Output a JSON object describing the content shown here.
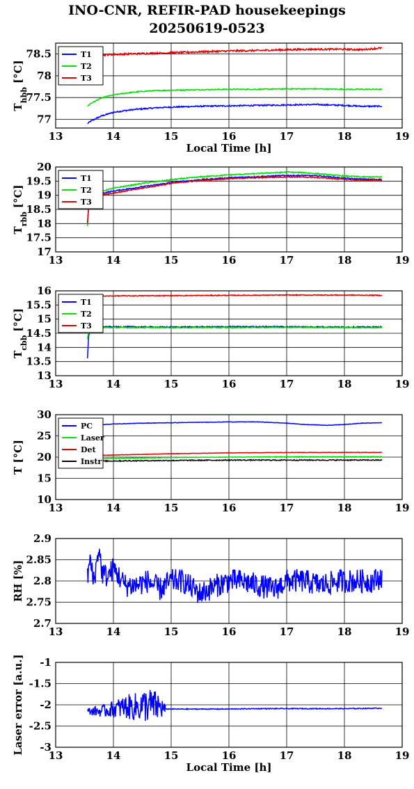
{
  "title_line1": "INO-CNR, REFIR-PAD housekeepings",
  "title_line2": "20250619-0523",
  "colors": {
    "blue": "#0000ff",
    "green": "#00e000",
    "red": "#e00000",
    "black": "#000000"
  },
  "chart_data": [
    {
      "type": "line",
      "id": "hbb",
      "ylabel_main": "T",
      "ylabel_sub": "hbb",
      "ylabel_unit": "[°C]",
      "xlabel": "Local Time [h]",
      "xlim": [
        13,
        19
      ],
      "ylim": [
        76.8,
        78.75
      ],
      "xticks": [
        13,
        14,
        15,
        16,
        17,
        18,
        19
      ],
      "yticks": [
        77,
        77.5,
        78,
        78.5
      ],
      "grid": "y",
      "legend_position": "top-left",
      "series": [
        {
          "name": "T1",
          "color": "blue",
          "x": [
            13.55,
            13.6,
            13.7,
            13.8,
            13.9,
            14.0,
            14.2,
            14.4,
            14.6,
            14.8,
            15.0,
            15.5,
            16.0,
            16.5,
            17.0,
            17.5,
            18.0,
            18.3,
            18.65
          ],
          "y": [
            76.9,
            76.95,
            77.02,
            77.08,
            77.12,
            77.16,
            77.2,
            77.23,
            77.25,
            77.27,
            77.28,
            77.3,
            77.31,
            77.32,
            77.33,
            77.34,
            77.32,
            77.3,
            77.3
          ],
          "noise": 0.015
        },
        {
          "name": "T2",
          "color": "green",
          "x": [
            13.55,
            13.6,
            13.7,
            13.8,
            13.9,
            14.0,
            14.2,
            14.4,
            14.6,
            14.8,
            15.0,
            15.5,
            16.0,
            16.5,
            17.0,
            17.5,
            18.0,
            18.3,
            18.65
          ],
          "y": [
            77.3,
            77.36,
            77.43,
            77.49,
            77.53,
            77.56,
            77.6,
            77.63,
            77.65,
            77.66,
            77.67,
            77.68,
            77.69,
            77.69,
            77.7,
            77.7,
            77.69,
            77.69,
            77.69
          ],
          "noise": 0.012
        },
        {
          "name": "T3",
          "color": "red",
          "x": [
            13.55,
            14.0,
            14.5,
            15.0,
            15.5,
            16.0,
            16.5,
            17.0,
            17.5,
            18.0,
            18.3,
            18.65
          ],
          "y": [
            78.46,
            78.49,
            78.51,
            78.53,
            78.55,
            78.57,
            78.58,
            78.6,
            78.61,
            78.61,
            78.6,
            78.64
          ],
          "noise": 0.02
        }
      ]
    },
    {
      "type": "line",
      "id": "rbb",
      "ylabel_main": "T",
      "ylabel_sub": "rbb",
      "ylabel_unit": "[°C]",
      "xlabel": "",
      "xlim": [
        13,
        19
      ],
      "ylim": [
        17,
        20
      ],
      "xticks": [
        13,
        14,
        15,
        16,
        17,
        18,
        19
      ],
      "yticks": [
        17,
        17.5,
        18,
        18.5,
        19,
        19.5,
        20
      ],
      "grid": "y",
      "legend_position": "top-left",
      "series": [
        {
          "name": "T1",
          "color": "blue",
          "x": [
            13.55,
            13.57,
            13.6,
            13.75,
            14.0,
            14.5,
            15.0,
            15.5,
            16.0,
            16.5,
            17.0,
            17.3,
            17.6,
            18.0,
            18.3,
            18.65
          ],
          "y": [
            18.0,
            18.6,
            19.0,
            19.05,
            19.15,
            19.3,
            19.45,
            19.55,
            19.62,
            19.66,
            19.7,
            19.7,
            19.68,
            19.6,
            19.57,
            19.56
          ],
          "noise": 0.02
        },
        {
          "name": "T2",
          "color": "green",
          "x": [
            13.55,
            13.57,
            13.6,
            13.75,
            14.0,
            14.5,
            15.0,
            15.5,
            16.0,
            16.5,
            17.0,
            17.3,
            17.6,
            18.0,
            18.3,
            18.65
          ],
          "y": [
            17.9,
            18.5,
            19.0,
            19.12,
            19.25,
            19.42,
            19.55,
            19.65,
            19.72,
            19.77,
            19.82,
            19.8,
            19.75,
            19.68,
            19.65,
            19.65
          ],
          "noise": 0.02
        },
        {
          "name": "T3",
          "color": "red",
          "x": [
            13.55,
            13.57,
            13.6,
            13.75,
            14.0,
            14.5,
            15.0,
            15.5,
            16.0,
            16.5,
            17.0,
            17.3,
            17.6,
            18.0,
            18.3,
            18.65
          ],
          "y": [
            18.0,
            18.55,
            18.95,
            19.0,
            19.08,
            19.25,
            19.42,
            19.52,
            19.59,
            19.62,
            19.65,
            19.64,
            19.62,
            19.56,
            19.53,
            19.53
          ],
          "noise": 0.02
        }
      ]
    },
    {
      "type": "line",
      "id": "cbb",
      "ylabel_main": "T",
      "ylabel_sub": "cbb",
      "ylabel_unit": "[°C]",
      "xlabel": "",
      "xlim": [
        13,
        19
      ],
      "ylim": [
        13,
        16
      ],
      "xticks": [
        13,
        14,
        15,
        16,
        17,
        18,
        19
      ],
      "yticks": [
        13,
        13.5,
        14,
        14.5,
        15,
        15.5,
        16
      ],
      "grid": "y",
      "legend_position": "top-left",
      "series": [
        {
          "name": "T1",
          "color": "blue",
          "x": [
            13.55,
            13.57,
            13.6,
            13.7,
            14.0,
            15.0,
            16.0,
            17.0,
            18.0,
            18.65
          ],
          "y": [
            13.6,
            14.4,
            14.7,
            14.72,
            14.73,
            14.72,
            14.73,
            14.73,
            14.72,
            14.72
          ],
          "noise": 0.02
        },
        {
          "name": "T2",
          "color": "green",
          "x": [
            13.55,
            13.57,
            13.6,
            13.7,
            14.0,
            15.0,
            16.0,
            17.0,
            18.0,
            18.65
          ],
          "y": [
            14.3,
            14.6,
            14.68,
            14.7,
            14.7,
            14.7,
            14.7,
            14.71,
            14.7,
            14.7
          ],
          "noise": 0.02
        },
        {
          "name": "T3",
          "color": "red",
          "x": [
            13.55,
            14.0,
            15.0,
            16.0,
            17.0,
            18.0,
            18.65
          ],
          "y": [
            15.8,
            15.82,
            15.83,
            15.84,
            15.85,
            15.85,
            15.84
          ],
          "noise": 0.015
        }
      ]
    },
    {
      "type": "line",
      "id": "temps",
      "ylabel_main": "T [°C]",
      "ylabel_sub": "",
      "ylabel_unit": "",
      "xlabel": "",
      "xlim": [
        13,
        19
      ],
      "ylim": [
        10,
        30
      ],
      "xticks": [
        13,
        14,
        15,
        16,
        17,
        18,
        19
      ],
      "yticks": [
        10,
        15,
        20,
        25,
        30
      ],
      "grid": "y",
      "legend_position": "top-left",
      "series": [
        {
          "name": "PC",
          "color": "blue",
          "x": [
            13.55,
            14.0,
            14.5,
            15.0,
            15.5,
            16.0,
            16.5,
            17.0,
            17.3,
            17.7,
            18.0,
            18.3,
            18.65
          ],
          "y": [
            27.5,
            27.8,
            28.0,
            28.1,
            28.2,
            28.3,
            28.3,
            28.0,
            27.7,
            27.5,
            27.7,
            28.0,
            28.1
          ],
          "noise": 0.05
        },
        {
          "name": "Laser",
          "color": "green",
          "x": [
            13.55,
            14.0,
            15.0,
            16.0,
            17.0,
            18.0,
            18.65
          ],
          "y": [
            19.5,
            19.7,
            19.9,
            20.0,
            20.1,
            20.1,
            20.1
          ],
          "noise": 0.05
        },
        {
          "name": "Det",
          "color": "red",
          "x": [
            13.55,
            14.0,
            15.0,
            16.0,
            17.0,
            18.0,
            18.65
          ],
          "y": [
            20.3,
            20.5,
            20.8,
            21.0,
            21.1,
            21.1,
            21.1
          ],
          "noise": 0.05
        },
        {
          "name": "Instr",
          "color": "black",
          "x": [
            13.55,
            14.0,
            15.0,
            16.0,
            17.0,
            18.0,
            18.65
          ],
          "y": [
            19.0,
            19.1,
            19.2,
            19.3,
            19.3,
            19.3,
            19.3
          ],
          "noise": 0.12
        }
      ]
    },
    {
      "type": "line",
      "id": "rh",
      "ylabel_main": "RH [%]",
      "ylabel_sub": "",
      "ylabel_unit": "",
      "xlabel": "",
      "xlim": [
        13,
        19
      ],
      "ylim": [
        2.7,
        2.9
      ],
      "xticks": [
        13,
        14,
        15,
        16,
        17,
        18,
        19
      ],
      "yticks": [
        2.7,
        2.75,
        2.8,
        2.85,
        2.9
      ],
      "grid": "y",
      "legend_position": "none",
      "series": [
        {
          "name": "",
          "color": "blue",
          "x": [
            13.55,
            13.6,
            13.65,
            13.7,
            13.75,
            13.8,
            13.9,
            14.0,
            14.2,
            14.4,
            14.6,
            14.8,
            15.0,
            15.2,
            15.5,
            15.8,
            16.0,
            16.2,
            16.5,
            16.8,
            17.0,
            17.3,
            17.6,
            17.9,
            18.2,
            18.5,
            18.65
          ],
          "y": [
            2.81,
            2.85,
            2.8,
            2.83,
            2.88,
            2.82,
            2.81,
            2.83,
            2.79,
            2.79,
            2.8,
            2.78,
            2.8,
            2.8,
            2.77,
            2.79,
            2.8,
            2.8,
            2.79,
            2.78,
            2.8,
            2.8,
            2.79,
            2.8,
            2.8,
            2.8,
            2.81
          ],
          "noise": 0.028
        }
      ]
    },
    {
      "type": "line",
      "id": "laser",
      "ylabel_main": "Laser error [a.u.]",
      "ylabel_sub": "",
      "ylabel_unit": "",
      "xlabel": "Local Time [h]",
      "xlim": [
        13,
        19
      ],
      "ylim": [
        -3,
        -1
      ],
      "xticks": [
        13,
        14,
        15,
        16,
        17,
        18,
        19
      ],
      "yticks": [
        -3,
        -2.5,
        -2,
        -1.5,
        -1
      ],
      "grid": "y",
      "legend_position": "none",
      "series": [
        {
          "name": "",
          "color": "blue",
          "x": [
            13.55,
            13.8,
            14.0,
            14.2,
            14.4,
            14.6,
            14.8,
            14.9
          ],
          "y": [
            -2.15,
            -2.15,
            -2.1,
            -2.05,
            -2.05,
            -2.0,
            -2.05,
            -2.1
          ],
          "noise": 0.0,
          "amp": [
            0.08,
            0.14,
            0.2,
            0.28,
            0.34,
            0.42,
            0.34,
            0.12
          ]
        },
        {
          "name": "",
          "color": "blue",
          "x": [
            14.9,
            15.5,
            16.0,
            16.5,
            17.0,
            17.5,
            18.0,
            18.65
          ],
          "y": [
            -2.1,
            -2.1,
            -2.1,
            -2.09,
            -2.09,
            -2.09,
            -2.09,
            -2.08
          ],
          "noise": 0.01
        }
      ]
    }
  ]
}
